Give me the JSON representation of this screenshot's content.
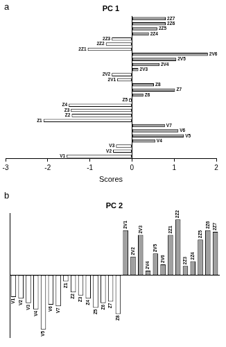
{
  "chart_data": [
    {
      "type": "bar",
      "orientation": "horizontal",
      "annotation": "a",
      "title": "PC 1",
      "x_label": "Scores",
      "categories": [
        "2Z7",
        "2Z6",
        "2Z5",
        "2Z4",
        "2Z3",
        "2Z2",
        "2Z1",
        "2V6",
        "2V5",
        "2V4",
        "2V3",
        "2V2",
        "2V1",
        "Z8",
        "Z7",
        "Z6",
        "Z5",
        "Z4",
        "Z3",
        "Z2",
        "Z1",
        "V7",
        "V6",
        "V5",
        "V4",
        "V3",
        "V2",
        "V1"
      ],
      "values": [
        0.8,
        0.8,
        0.6,
        0.4,
        -0.48,
        -0.62,
        -1.05,
        1.8,
        1.05,
        0.65,
        0.15,
        -0.48,
        -0.35,
        0.52,
        1.02,
        0.27,
        -0.07,
        -1.5,
        -1.45,
        -1.43,
        -2.1,
        0.78,
        1.1,
        1.23,
        0.55,
        -0.38,
        -0.45,
        -1.55
      ],
      "colors": [
        "#a0a0a0",
        "#a0a0a0",
        "#a0a0a0",
        "#a0a0a0",
        "#ffffff",
        "#ffffff",
        "#ffffff",
        "#a0a0a0",
        "#a0a0a0",
        "#a0a0a0",
        "#a0a0a0",
        "#ffffff",
        "#ffffff",
        "#a0a0a0",
        "#a0a0a0",
        "#a0a0a0",
        "#ffffff",
        "#ffffff",
        "#ffffff",
        "#ffffff",
        "#ffffff",
        "#a0a0a0",
        "#a0a0a0",
        "#a0a0a0",
        "#a0a0a0",
        "#ffffff",
        "#ffffff",
        "#ffffff"
      ],
      "xlim": [
        -3,
        2
      ],
      "xticks": [
        -3,
        -2,
        -1,
        0,
        1,
        2
      ],
      "grid": false,
      "tick_labels": "x"
    },
    {
      "type": "bar",
      "annotation": "b",
      "title": "PC 2",
      "categories": [
        "V1",
        "V2",
        "V3",
        "V4",
        "V5",
        "V6",
        "V7",
        "Z1",
        "Z2",
        "Z3",
        "Z4",
        "Z5",
        "Z6",
        "Z7",
        "Z8",
        "2V1",
        "2V2",
        "2V3",
        "2V4",
        "2V5",
        "2V6",
        "2Z1",
        "2Z2",
        "2Z3",
        "2Z4",
        "2Z5",
        "2Z6",
        "2Z7"
      ],
      "values": [
        -0.7,
        -0.75,
        -0.9,
        -1.1,
        -1.75,
        -0.95,
        -1.0,
        -0.2,
        -0.55,
        -0.65,
        -0.75,
        -1.05,
        -0.9,
        -0.85,
        -1.25,
        1.45,
        0.6,
        1.3,
        0.15,
        0.7,
        0.35,
        1.3,
        1.8,
        0.3,
        0.45,
        1.15,
        1.45,
        1.4
      ],
      "colors": [
        "#ffffff",
        "#ffffff",
        "#ffffff",
        "#ffffff",
        "#ffffff",
        "#ffffff",
        "#ffffff",
        "#ffffff",
        "#ffffff",
        "#ffffff",
        "#ffffff",
        "#ffffff",
        "#ffffff",
        "#ffffff",
        "#ffffff",
        "#a0a0a0",
        "#a0a0a0",
        "#a0a0a0",
        "#a0a0a0",
        "#a0a0a0",
        "#a0a0a0",
        "#a0a0a0",
        "#a0a0a0",
        "#a0a0a0",
        "#a0a0a0",
        "#a0a0a0",
        "#a0a0a0",
        "#a0a0a0"
      ],
      "ylim": [
        -2,
        2
      ],
      "grid": false,
      "tick_labels": false
    }
  ]
}
